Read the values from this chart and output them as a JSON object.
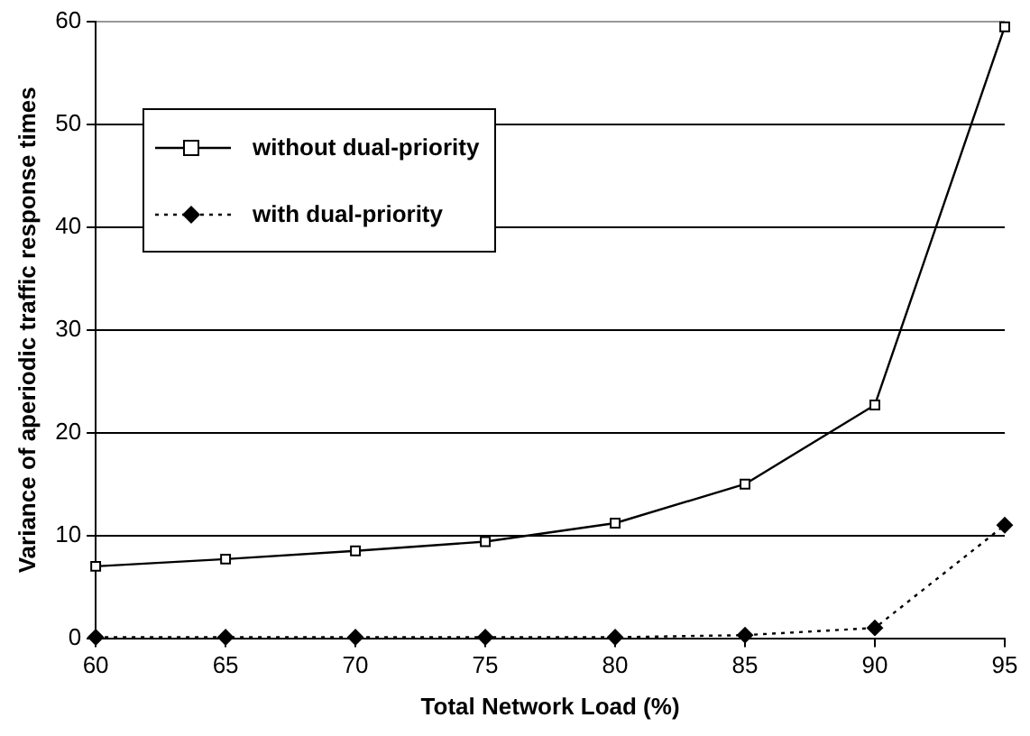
{
  "chart_data": {
    "type": "line",
    "xlabel": "Total Network Load (%)",
    "ylabel": "Variance of aperiodic traffic response times",
    "x": [
      60,
      65,
      70,
      75,
      80,
      85,
      90,
      95
    ],
    "series": [
      {
        "name": "without dual-priority",
        "color": "#000000",
        "marker": "square",
        "line_style": "solid",
        "values": [
          7,
          7.7,
          8.5,
          9.4,
          11.2,
          15,
          22.7,
          59.5
        ]
      },
      {
        "name": "with dual-priority",
        "color": "#000000",
        "marker": "diamond",
        "line_style": "dotted",
        "values": [
          0.1,
          0.1,
          0.1,
          0.1,
          0.1,
          0.3,
          1,
          11
        ]
      }
    ],
    "xlim": [
      60,
      95
    ],
    "xticks": [
      60,
      65,
      70,
      75,
      80,
      85,
      90,
      95
    ],
    "ylim": [
      0,
      60
    ],
    "yticks": [
      0,
      10,
      20,
      30,
      40,
      50,
      60
    ],
    "grid": "y",
    "legend": "top left"
  }
}
